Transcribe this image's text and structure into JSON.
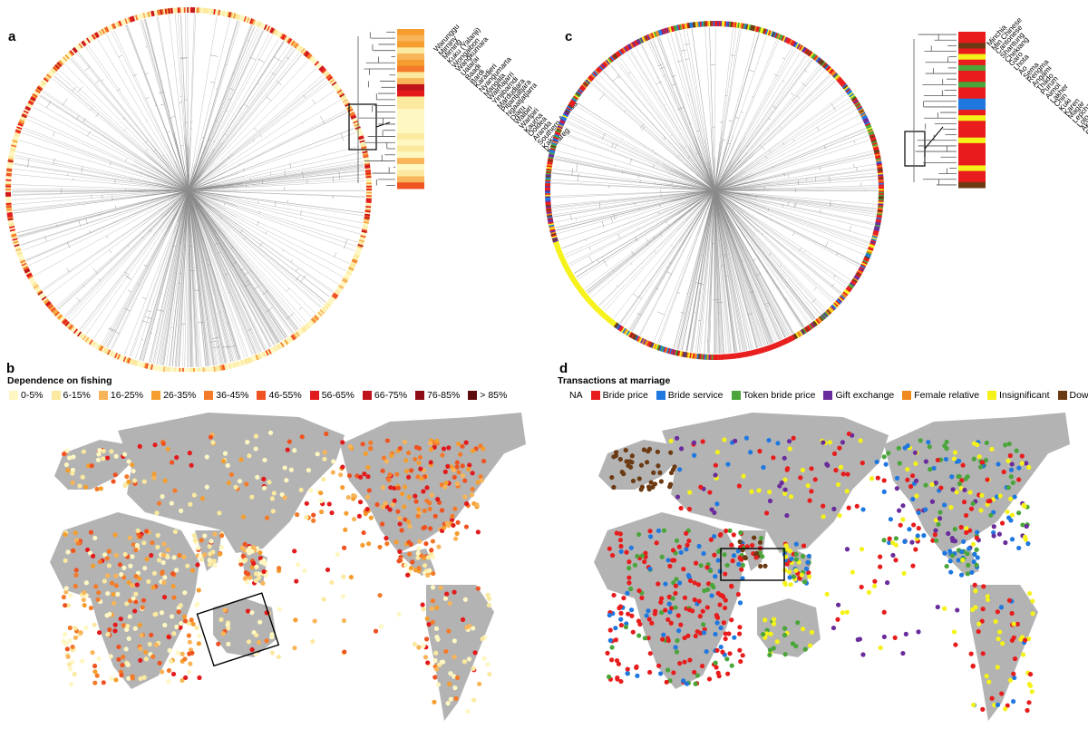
{
  "panels": {
    "a": "a",
    "b": "b",
    "c": "c",
    "d": "d"
  },
  "colors": {
    "land": "#b3b3b3",
    "tree_line": "#8c8c8c",
    "fishing_scale": [
      "#fff7c2",
      "#fbe9a0",
      "#f8b458",
      "#f59e2f",
      "#f47b2a",
      "#ef5321",
      "#e31a1c",
      "#c0121a",
      "#8f0e15",
      "#5e0a0e"
    ],
    "transactions": {
      "NA": "#ffffff",
      "Bride price": "#e81c1c",
      "Bride service": "#1f78e0",
      "Token bride price": "#4aa53a",
      "Gift exchange": "#6a2c9c",
      "Female relative": "#f08a1e",
      "Insignificant": "#f5f21a",
      "Dowry": "#6b3a12"
    }
  },
  "fishing_legend": {
    "title": "Dependence on fishing",
    "items": [
      "0-5%",
      "6-15%",
      "16-25%",
      "26-35%",
      "36-45%",
      "46-55%",
      "56-65%",
      "66-75%",
      "76-85%",
      "> 85%"
    ]
  },
  "marriage_legend": {
    "title": "Transactions at marriage",
    "items": [
      "NA",
      "Bride price",
      "Bride service",
      "Token bride price",
      "Gift exchange",
      "Female relative",
      "Insignificant",
      "Dowry"
    ]
  },
  "inset_a": {
    "names": [
      "Warunggu",
      "Mirniny",
      "Mirning",
      "Kuku (Yalanji)",
      "Wongaibon",
      "Wangkumara",
      "Ualarai",
      "Baadi",
      "Bardi",
      "Karadjeri",
      "Nyangumarta",
      "Mangala",
      "Walmajarri",
      "Yinjibarndi",
      "Mardudjara",
      "Pitjantjatjara",
      "Ngaatjatjarra",
      "Djaru",
      "Walbiri",
      "Warlpiri",
      "Kaurna",
      "Ooldea",
      "Aranda",
      "Southern Arenda",
      "Kakadu",
      "Kaurareg"
    ],
    "colors": [
      "#f59e2f",
      "#f8b458",
      "#f59e2f",
      "#fbe9a0",
      "#f8b458",
      "#f59e2f",
      "#f47b2a",
      "#fbe9a0",
      "#f8b458",
      "#c0121a",
      "#e31a1c",
      "#fbe9a0",
      "#fbe9a0",
      "#fff7c2",
      "#fff7c2",
      "#fff7c2",
      "#fff7c2",
      "#fbe9a0",
      "#fff7c2",
      "#fbe9a0",
      "#fff7c2",
      "#f8b458",
      "#fff7c2",
      "#fbe9a0",
      "#f8b458",
      "#ef5321"
    ]
  },
  "inset_c": {
    "names": [
      "Minchia",
      "Min Chinese",
      "Cantonese",
      "Shantung",
      "Chekiang",
      "Garo",
      "Lhota",
      "Ao",
      "Sema",
      "Rengma",
      "Angami",
      "Thado",
      "Purum",
      "Aimol",
      "Lakher",
      "Chin",
      "Kuki",
      "Karen",
      "Magar",
      "Lepcha",
      "Lolo",
      "Akha",
      "Burmese",
      "Mogh",
      "Kachin",
      "Kachari",
      "Sherpa",
      "Tibetans"
    ],
    "colors": [
      "#e81c1c",
      "#e81c1c",
      "#6b3a12",
      "#e81c1c",
      "#f5f21a",
      "#e81c1c",
      "#4aa53a",
      "#e81c1c",
      "#e81c1c",
      "#4aa53a",
      "#e81c1c",
      "#e81c1c",
      "#1f78e0",
      "#1f78e0",
      "#e81c1c",
      "#f5f21a",
      "#e81c1c",
      "#e81c1c",
      "#e81c1c",
      "#f5f21a",
      "#e81c1c",
      "#e81c1c",
      "#e81c1c",
      "#e81c1c",
      "#f5f21a",
      "#e81c1c",
      "#e81c1c",
      "#6b3a12"
    ]
  }
}
